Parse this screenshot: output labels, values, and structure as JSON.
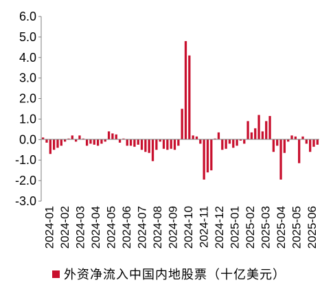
{
  "chart_data": {
    "type": "bar",
    "series": [
      {
        "name": "外资净流入中国内地股票（十亿美元）",
        "color": "#c8102e",
        "values": [
          0.1,
          -0.15,
          -0.7,
          -0.5,
          -0.4,
          -0.3,
          -0.1,
          0.05,
          0.2,
          -0.1,
          0.2,
          0.05,
          -0.3,
          -0.2,
          -0.25,
          -0.3,
          -0.2,
          -0.1,
          0.4,
          0.3,
          0.25,
          -0.15,
          0.05,
          -0.3,
          -0.3,
          -0.35,
          -0.25,
          -0.5,
          -0.6,
          -0.65,
          -1.05,
          -0.5,
          -0.1,
          -0.45,
          -0.5,
          -0.45,
          -0.5,
          -0.3,
          1.5,
          4.8,
          4.1,
          0.2,
          0.15,
          -0.2,
          -1.95,
          -1.6,
          -1.5,
          0.05,
          0.35,
          -0.5,
          -0.45,
          -0.2,
          -0.4,
          -0.3,
          -0.05,
          -0.2,
          0.9,
          0.35,
          0.55,
          1.2,
          0.4,
          0.9,
          1.15,
          -0.6,
          -0.3,
          -1.95,
          -0.65,
          -0.1,
          0.2,
          0.15,
          -1.15,
          0.15,
          -0.2,
          -0.6,
          -0.35,
          -0.25
        ]
      }
    ],
    "x_ticks": [
      "2024-01",
      "2024-02",
      "2024-03",
      "2024-04",
      "2024-05",
      "2024-06",
      "2024-07",
      "2024-08",
      "2024-09",
      "2024-10",
      "2024-11",
      "2024-12",
      "2025-01",
      "2025-02",
      "2025-03",
      "2025-04",
      "2025-05",
      "2025-06"
    ],
    "y_ticks": [
      "6.0",
      "5.0",
      "4.0",
      "3.0",
      "2.0",
      "1.0",
      "0.0",
      "-1.0",
      "-2.0",
      "-3.0"
    ],
    "ylim": [
      -3.0,
      6.0
    ],
    "grid": false,
    "legend_position": "bottom",
    "title": "",
    "xlabel": "",
    "ylabel": ""
  }
}
